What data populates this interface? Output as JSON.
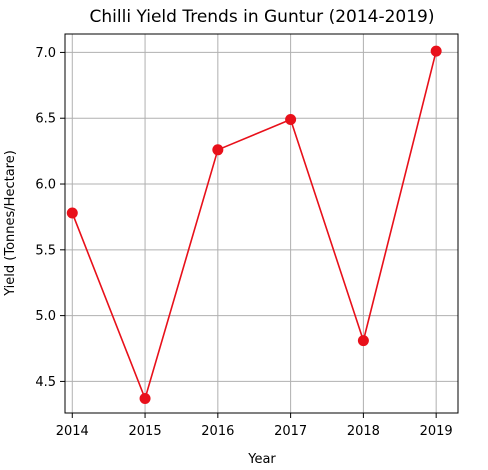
{
  "chart_data": {
    "type": "line",
    "title": "Chilli Yield Trends in Guntur (2014-2019)",
    "xlabel": "Year",
    "ylabel": "Yield (Tonnes/Hectare)",
    "x": [
      2014,
      2015,
      2016,
      2017,
      2018,
      2019
    ],
    "series": [
      {
        "values": [
          5.78,
          4.37,
          6.26,
          6.49,
          4.81,
          7.01
        ],
        "color": "#e8101a"
      }
    ],
    "xticks": [
      "2014",
      "2015",
      "2016",
      "2017",
      "2018",
      "2019"
    ],
    "yticks": [
      "4.5",
      "5.0",
      "5.5",
      "6.0",
      "6.5",
      "7.0"
    ],
    "xlim": [
      2013.9,
      2019.3
    ],
    "ylim": [
      4.26,
      7.14
    ],
    "grid": true,
    "marker": "circle"
  }
}
